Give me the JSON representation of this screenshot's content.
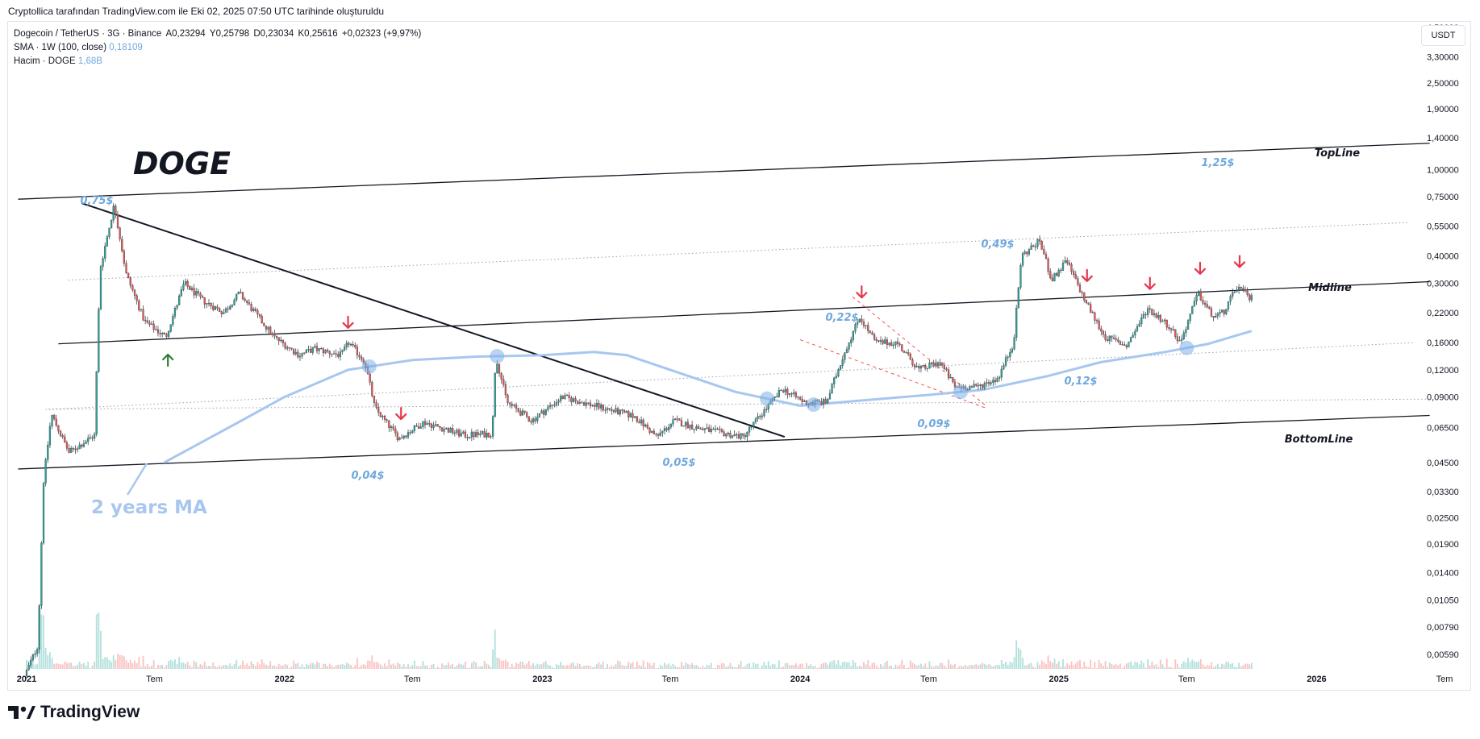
{
  "caption": "Cryptollica tarafından TradingView.com ile Eki 02, 2025 07:50 UTC tarihinde oluşturuldu",
  "legend": {
    "symbol": "Dogecoin / TetherUS · 3G · Binance",
    "open": "A0,23294",
    "high": "Y0,25798",
    "low": "D0,23034",
    "close": "K0,25616",
    "change": "+0,02323 (+9,97%)",
    "sma_label": "SMA · 1W (100, close)",
    "sma_value": "0,18109",
    "volume_label": "Hacim · DOGE",
    "volume_value": "1,68B"
  },
  "currency_button": "USDT",
  "brand": "TradingView",
  "chart_data": {
    "type": "candlestick",
    "symbol": "Dogecoin / TetherUS",
    "interval": "3G",
    "exchange": "Binance",
    "y_scale": "log",
    "y_tick_labels": [
      "4,50000",
      "3,30000",
      "2,50000",
      "1,90000",
      "1,40000",
      "1,00000",
      "0,75000",
      "0,55000",
      "0,40000",
      "0,30000",
      "0,22000",
      "0,16000",
      "0,12000",
      "0,09000",
      "0,06500",
      "0,04500",
      "0,03300",
      "0,02500",
      "0,01900",
      "0,01400",
      "0,01050",
      "0,00790",
      "0,00590"
    ],
    "y_tick_values": [
      4.5,
      3.3,
      2.5,
      1.9,
      1.4,
      1.0,
      0.75,
      0.55,
      0.4,
      0.3,
      0.22,
      0.16,
      0.12,
      0.09,
      0.065,
      0.045,
      0.033,
      0.025,
      0.019,
      0.014,
      0.0105,
      0.0079,
      0.0059
    ],
    "x_tick_labels": [
      "2021",
      "Tem",
      "2022",
      "Tem",
      "2023",
      "Tem",
      "2024",
      "Tem",
      "2025",
      "Tem",
      "2026",
      "Tem"
    ],
    "x_tick_dates": [
      "2021-01-01",
      "2021-07-01",
      "2022-01-01",
      "2022-07-01",
      "2023-01-01",
      "2023-07-01",
      "2024-01-01",
      "2024-07-01",
      "2025-01-01",
      "2025-07-01",
      "2026-01-01",
      "2026-07-01"
    ],
    "price_path": [
      [
        "2021-01-01",
        0.0047
      ],
      [
        "2021-01-20",
        0.0065
      ],
      [
        "2021-01-28",
        0.037
      ],
      [
        "2021-02-08",
        0.075
      ],
      [
        "2021-03-05",
        0.05
      ],
      [
        "2021-04-10",
        0.06
      ],
      [
        "2021-04-18",
        0.35
      ],
      [
        "2021-05-08",
        0.69
      ],
      [
        "2021-05-25",
        0.33
      ],
      [
        "2021-06-20",
        0.2
      ],
      [
        "2021-07-20",
        0.17
      ],
      [
        "2021-08-15",
        0.3
      ],
      [
        "2021-09-10",
        0.25
      ],
      [
        "2021-10-10",
        0.22
      ],
      [
        "2021-11-01",
        0.27
      ],
      [
        "2021-12-20",
        0.17
      ],
      [
        "2022-01-25",
        0.14
      ],
      [
        "2022-02-15",
        0.15
      ],
      [
        "2022-03-25",
        0.14
      ],
      [
        "2022-04-05",
        0.16
      ],
      [
        "2022-04-28",
        0.13
      ],
      [
        "2022-05-12",
        0.08
      ],
      [
        "2022-06-15",
        0.058
      ],
      [
        "2022-07-20",
        0.069
      ],
      [
        "2022-09-15",
        0.06
      ],
      [
        "2022-10-25",
        0.061
      ],
      [
        "2022-10-30",
        0.14
      ],
      [
        "2022-11-15",
        0.085
      ],
      [
        "2022-12-20",
        0.07
      ],
      [
        "2023-02-01",
        0.09
      ],
      [
        "2023-04-01",
        0.08
      ],
      [
        "2023-05-15",
        0.073
      ],
      [
        "2023-06-15",
        0.059
      ],
      [
        "2023-07-10",
        0.07
      ],
      [
        "2023-08-10",
        0.065
      ],
      [
        "2023-09-20",
        0.061
      ],
      [
        "2023-10-15",
        0.059
      ],
      [
        "2023-11-10",
        0.075
      ],
      [
        "2023-12-10",
        0.098
      ],
      [
        "2024-01-10",
        0.085
      ],
      [
        "2024-02-10",
        0.085
      ],
      [
        "2024-03-05",
        0.14
      ],
      [
        "2024-03-28",
        0.21
      ],
      [
        "2024-04-20",
        0.16
      ],
      [
        "2024-05-20",
        0.16
      ],
      [
        "2024-06-20",
        0.12
      ],
      [
        "2024-07-20",
        0.13
      ],
      [
        "2024-08-10",
        0.1
      ],
      [
        "2024-09-10",
        0.1
      ],
      [
        "2024-10-10",
        0.11
      ],
      [
        "2024-11-01",
        0.16
      ],
      [
        "2024-11-12",
        0.4
      ],
      [
        "2024-12-08",
        0.47
      ],
      [
        "2024-12-25",
        0.31
      ],
      [
        "2025-01-15",
        0.38
      ],
      [
        "2025-02-10",
        0.25
      ],
      [
        "2025-03-10",
        0.17
      ],
      [
        "2025-04-10",
        0.155
      ],
      [
        "2025-05-10",
        0.23
      ],
      [
        "2025-06-10",
        0.19
      ],
      [
        "2025-06-25",
        0.16
      ],
      [
        "2025-07-20",
        0.27
      ],
      [
        "2025-08-10",
        0.21
      ],
      [
        "2025-08-25",
        0.22
      ],
      [
        "2025-09-14",
        0.29
      ],
      [
        "2025-10-01",
        0.256
      ]
    ],
    "sma_path": [
      [
        "2021-07-15",
        0.045
      ],
      [
        "2021-11-01",
        0.07
      ],
      [
        "2022-01-01",
        0.09
      ],
      [
        "2022-04-01",
        0.12
      ],
      [
        "2022-07-01",
        0.133
      ],
      [
        "2022-10-01",
        0.138
      ],
      [
        "2023-01-01",
        0.14
      ],
      [
        "2023-03-15",
        0.145
      ],
      [
        "2023-05-01",
        0.14
      ],
      [
        "2023-07-01",
        0.12
      ],
      [
        "2023-10-01",
        0.095
      ],
      [
        "2024-01-01",
        0.082
      ],
      [
        "2024-04-01",
        0.087
      ],
      [
        "2024-07-01",
        0.092
      ],
      [
        "2024-09-15",
        0.097
      ],
      [
        "2024-12-15",
        0.112
      ],
      [
        "2025-03-01",
        0.13
      ],
      [
        "2025-06-01",
        0.145
      ],
      [
        "2025-08-01",
        0.158
      ],
      [
        "2025-10-01",
        0.181
      ]
    ],
    "trendlines": [
      {
        "name": "TopLine",
        "from": [
          "2020-12-20",
          0.73
        ],
        "to": [
          "2026-06-10",
          1.32
        ],
        "style": "solid"
      },
      {
        "name": "Midline",
        "from": [
          "2021-02-15",
          0.158
        ],
        "to": [
          "2026-06-10",
          0.305
        ],
        "style": "solid"
      },
      {
        "name": "BottomLine",
        "from": [
          "2020-12-20",
          0.042
        ],
        "to": [
          "2026-06-10",
          0.074
        ],
        "style": "solid"
      },
      {
        "name": "upper-dotted",
        "from": [
          "2021-03-01",
          0.31
        ],
        "to": [
          "2026-05-10",
          0.57
        ],
        "style": "dotted"
      },
      {
        "name": "mid-dotted",
        "from": [
          "2021-02-01",
          0.079
        ],
        "to": [
          "2026-05-20",
          0.16
        ],
        "style": "dotted"
      },
      {
        "name": "lower-dotted",
        "from": [
          "2021-01-28",
          0.079
        ],
        "to": [
          "2026-06-10",
          0.088
        ],
        "style": "dotted"
      },
      {
        "name": "downtrend",
        "from": [
          "2021-03-20",
          0.7
        ],
        "to": [
          "2023-12-10",
          0.059
        ],
        "style": "solid"
      }
    ],
    "channel_lines": [
      {
        "from": [
          "2024-03-15",
          0.26
        ],
        "to": [
          "2024-09-20",
          0.082
        ]
      },
      {
        "from": [
          "2024-01-01",
          0.165
        ],
        "to": [
          "2024-09-20",
          0.08
        ]
      }
    ],
    "price_annotations": [
      "0,75$",
      "0,04$",
      "0,05$",
      "0,22$",
      "0,09$",
      "0,49$",
      "0,12$",
      "1,25$"
    ],
    "line_labels": [
      "TopLine",
      "Midline",
      "BottomLine"
    ],
    "text_labels": [
      "DOGE",
      "2 years MA"
    ],
    "sma_touch_points": [
      "2022-05-01",
      "2022-10-29",
      "2023-11-15",
      "2024-01-20",
      "2024-08-15",
      "2025-07-01"
    ],
    "down_arrows": [
      "2022-04-01",
      "2022-06-15",
      "2024-03-28",
      "2025-02-10",
      "2025-05-10",
      "2025-07-20",
      "2025-09-14"
    ],
    "up_arrows": [
      "2021-07-20"
    ],
    "colors": {
      "up": "#26a69a",
      "down": "#ef5350",
      "sma": "#a8c7ef",
      "annotation": "#6fa8dc",
      "arrow_down": "#e5384a",
      "arrow_up": "#2e7d32",
      "channel": "#ef5350",
      "wick": "#42474f"
    }
  }
}
